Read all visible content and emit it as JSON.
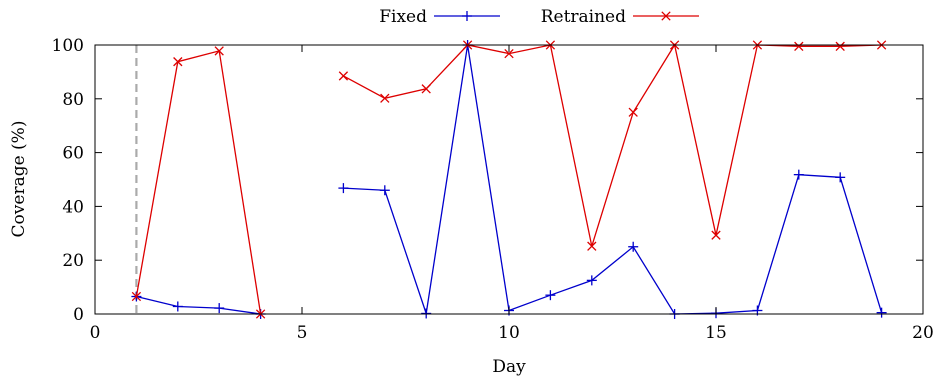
{
  "chart_data": {
    "type": "line",
    "xlabel": "Day",
    "ylabel": "Coverage (%)",
    "xlim": [
      0,
      20
    ],
    "ylim": [
      0,
      100
    ],
    "xticks": [
      0,
      5,
      10,
      15,
      20
    ],
    "yticks": [
      0,
      20,
      40,
      60,
      80,
      100
    ],
    "grid": false,
    "legend_position": "top-center",
    "reference_line": {
      "x": 1,
      "style": "dashed",
      "color": "#aaaaaa"
    },
    "series": [
      {
        "name": "Fixed",
        "color": "#0000cc",
        "marker": "plus",
        "segments": [
          [
            [
              1,
              6.5
            ],
            [
              2,
              2.8
            ],
            [
              3,
              2.2
            ],
            [
              4,
              0
            ]
          ],
          [
            [
              6,
              46.8
            ],
            [
              7,
              46.0
            ],
            [
              8,
              0.2
            ],
            [
              9,
              100
            ],
            [
              10,
              1.3
            ],
            [
              11,
              7.0
            ],
            [
              12,
              12.5
            ],
            [
              13,
              25.0
            ],
            [
              14,
              0
            ],
            [
              15,
              0.3
            ],
            [
              16,
              1.3
            ],
            [
              17,
              51.8
            ],
            [
              18,
              50.8
            ],
            [
              19,
              0.5
            ]
          ]
        ]
      },
      {
        "name": "Retrained",
        "color": "#dd0000",
        "marker": "cross",
        "segments": [
          [
            [
              1,
              6.5
            ],
            [
              2,
              93.8
            ],
            [
              3,
              97.8
            ],
            [
              4,
              0
            ]
          ],
          [
            [
              6,
              88.5
            ],
            [
              7,
              80.2
            ],
            [
              8,
              83.7
            ],
            [
              9,
              100
            ],
            [
              10,
              96.8
            ],
            [
              11,
              100
            ],
            [
              12,
              25.2
            ],
            [
              13,
              75.0
            ],
            [
              14,
              100
            ],
            [
              15,
              29.3
            ],
            [
              16,
              100
            ],
            [
              17,
              99.5
            ],
            [
              18,
              99.5
            ],
            [
              19,
              100
            ]
          ]
        ]
      }
    ]
  }
}
